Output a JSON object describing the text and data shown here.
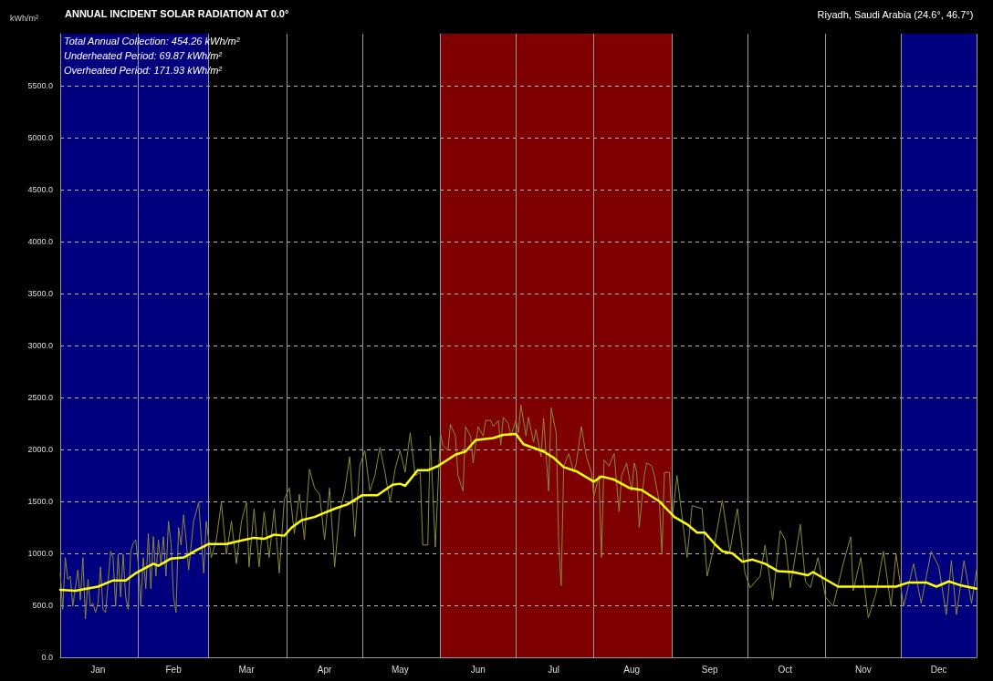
{
  "chart_data": {
    "type": "line",
    "title": "ANNUAL INCIDENT SOLAR RADIATION AT 0.0°",
    "subtitle": "Riyadh, Saudi Arabia (24.6°, 46.7°)",
    "ylabel": "kWh/m²",
    "annotations": [
      "Total Annual Collection:  454.26 kWh/m²",
      "Underheated Period:  69.87 kWh/m²",
      "Overheated Period:  171.93 kWh/m²"
    ],
    "xlim": [
      "--01-01",
      "--12-31"
    ],
    "xticks": [
      {
        "value": "--01-01",
        "label": null
      },
      {
        "value": "--01-16",
        "label": "Jan"
      },
      {
        "value": "--02-01",
        "label": null
      },
      {
        "value": "--02-15",
        "label": "Feb"
      },
      {
        "value": "--03-01",
        "label": null
      },
      {
        "value": "--03-16",
        "label": "Mar"
      },
      {
        "value": "--04-01",
        "label": null
      },
      {
        "value": "--04-16",
        "label": "Apr"
      },
      {
        "value": "--05-01",
        "label": null
      },
      {
        "value": "--05-16",
        "label": "May"
      },
      {
        "value": "--06-01",
        "label": null
      },
      {
        "value": "--06-16",
        "label": "Jun"
      },
      {
        "value": "--07-01",
        "label": null
      },
      {
        "value": "--07-16",
        "label": "Jul"
      },
      {
        "value": "--08-01",
        "label": null
      },
      {
        "value": "--08-16",
        "label": "Aug"
      },
      {
        "value": "--09-01",
        "label": null
      },
      {
        "value": "--09-16",
        "label": "Sep"
      },
      {
        "value": "--10-01",
        "label": null
      },
      {
        "value": "--10-16",
        "label": "Oct"
      },
      {
        "value": "--11-01",
        "label": null
      },
      {
        "value": "--11-16",
        "label": "Nov"
      },
      {
        "value": "--12-01",
        "label": null
      },
      {
        "value": "--12-16",
        "label": "Dec"
      },
      {
        "value": "--12-31",
        "label": null
      }
    ],
    "ylim": [
      0,
      6000
    ],
    "yticks": [
      {
        "value": 0,
        "label": "0.0"
      },
      {
        "value": 500,
        "label": "500.0"
      },
      {
        "value": 1000,
        "label": "1000.0"
      },
      {
        "value": 1500,
        "label": "1500.0"
      },
      {
        "value": 2000,
        "label": "2000.0"
      },
      {
        "value": 2500,
        "label": "2500.0"
      },
      {
        "value": 3000,
        "label": "3000.0"
      },
      {
        "value": 3500,
        "label": "3500.0"
      },
      {
        "value": 4000,
        "label": "4000.0"
      },
      {
        "value": 4500,
        "label": "4500.0"
      },
      {
        "value": 5000,
        "label": "5000.0"
      },
      {
        "value": 5500,
        "label": "5500.0"
      }
    ],
    "grid": true,
    "marker": "none",
    "line_style": "solid",
    "bands": [
      {
        "axis": "x",
        "from": "--01-01",
        "to": "--03-01",
        "color": "#00007f"
      },
      {
        "axis": "x",
        "from": "--06-01",
        "to": "--09-01",
        "color": "#7f0000"
      },
      {
        "axis": "x",
        "from": "--12-01",
        "to": "--12-31",
        "color": "#00007f"
      }
    ],
    "series": [
      {
        "color": "#8c8a3a",
        "x": [
          "--01-01",
          "--01-02",
          "--01-03",
          "--01-04",
          "--01-05",
          "--01-06",
          "--01-08",
          "--01-09",
          "--01-10",
          "--01-11",
          "--01-12",
          "--01-13",
          "--01-14",
          "--01-15",
          "--01-16",
          "--01-17",
          "--01-18",
          "--01-19",
          "--01-20",
          "--01-21",
          "--01-22",
          "--01-23",
          "--01-24",
          "--01-25",
          "--01-26",
          "--01-27",
          "--01-28",
          "--01-29",
          "--01-30",
          "--01-31",
          "--02-01",
          "--02-02",
          "--02-03",
          "--02-04",
          "--02-05",
          "--02-06",
          "--02-07",
          "--02-08",
          "--02-09",
          "--02-10",
          "--02-11",
          "--02-12",
          "--02-13",
          "--02-14",
          "--02-15",
          "--02-16",
          "--02-17",
          "--02-18",
          "--02-19",
          "--02-20",
          "--02-21",
          "--02-23",
          "--02-25",
          "--02-27",
          "--02-28",
          "--03-02",
          "--03-04",
          "--03-06",
          "--03-08",
          "--03-10",
          "--03-12",
          "--03-14",
          "--03-16",
          "--03-17",
          "--03-19",
          "--03-21",
          "--03-23",
          "--03-25",
          "--03-27",
          "--03-29",
          "--03-31",
          "--04-02",
          "--04-04",
          "--04-06",
          "--04-08",
          "--04-10",
          "--04-12",
          "--04-14",
          "--04-16",
          "--04-18",
          "--04-20",
          "--04-22",
          "--04-24",
          "--04-26",
          "--04-28",
          "--04-30",
          "--05-02",
          "--05-04",
          "--05-06",
          "--05-08",
          "--05-10",
          "--05-12",
          "--05-14",
          "--05-16",
          "--05-18",
          "--05-20",
          "--05-22",
          "--05-24",
          "--05-25",
          "--05-27",
          "--05-28",
          "--05-30",
          "--06-01",
          "--06-02",
          "--06-04",
          "--06-05",
          "--06-07",
          "--06-08",
          "--06-10",
          "--06-11",
          "--06-13",
          "--06-14",
          "--06-16",
          "--06-18",
          "--06-19",
          "--06-21",
          "--06-22",
          "--06-24",
          "--06-25",
          "--06-26",
          "--06-28",
          "--06-29",
          "--07-01",
          "--07-02",
          "--07-03",
          "--07-05",
          "--07-06",
          "--07-08",
          "--07-09",
          "--07-11",
          "--07-12",
          "--07-14",
          "--07-15",
          "--07-17",
          "--07-18",
          "--07-19",
          "--07-20",
          "--07-22",
          "--07-24",
          "--07-25",
          "--07-27",
          "--07-29",
          "--07-31",
          "--08-01",
          "--08-03",
          "--08-04",
          "--08-05",
          "--08-07",
          "--08-09",
          "--08-11",
          "--08-12",
          "--08-14",
          "--08-16",
          "--08-17",
          "--08-18",
          "--08-19",
          "--08-21",
          "--08-22",
          "--08-24",
          "--08-25",
          "--08-27",
          "--08-28",
          "--08-29",
          "--08-31",
          "--09-01",
          "--09-03",
          "--09-07",
          "--09-09",
          "--09-13",
          "--09-15",
          "--09-18",
          "--09-21",
          "--09-24",
          "--09-27",
          "--09-30",
          "--10-02",
          "--10-06",
          "--10-08",
          "--10-11",
          "--10-14",
          "--10-16",
          "--10-18",
          "--10-22",
          "--10-24",
          "--10-26",
          "--10-29",
          "--11-01",
          "--11-04",
          "--11-08",
          "--11-11",
          "--11-12",
          "--11-15",
          "--11-18",
          "--11-21",
          "--11-24",
          "--11-27",
          "--11-29",
          "--12-02",
          "--12-06",
          "--12-09",
          "--12-13",
          "--12-16",
          "--12-19",
          "--12-21",
          "--12-23",
          "--12-26",
          "--12-29",
          "--12-31"
        ],
        "values": [
          810,
          460,
          960,
          750,
          780,
          490,
          840,
          550,
          960,
          370,
          750,
          490,
          520,
          430,
          520,
          870,
          460,
          430,
          720,
          1020,
          960,
          490,
          990,
          580,
          990,
          580,
          460,
          1020,
          1100,
          1130,
          900,
          490,
          960,
          660,
          1190,
          660,
          1160,
          780,
          1130,
          900,
          1160,
          780,
          1310,
          1100,
          580,
          430,
          1250,
          1080,
          1370,
          1130,
          840,
          1310,
          1490,
          810,
          1310,
          960,
          1130,
          1490,
          990,
          1310,
          900,
          1310,
          1490,
          870,
          1430,
          870,
          1400,
          960,
          1430,
          810,
          1520,
          1630,
          1190,
          1570,
          1130,
          1810,
          1630,
          1570,
          1130,
          1630,
          870,
          1400,
          1600,
          1930,
          1160,
          1840,
          1990,
          1600,
          1750,
          2020,
          1780,
          1490,
          1810,
          1990,
          1780,
          2160,
          1750,
          1780,
          1080,
          1080,
          2130,
          1060,
          2160,
          2040,
          1990,
          2240,
          2130,
          1750,
          1600,
          2220,
          2130,
          1870,
          2220,
          2130,
          2280,
          2280,
          2220,
          2280,
          2040,
          2310,
          2250,
          2130,
          2280,
          2160,
          2430,
          2130,
          2310,
          2070,
          2190,
          1930,
          2300,
          1600,
          2400,
          2160,
          1100,
          690,
          1840,
          1960,
          1780,
          1870,
          2220,
          1930,
          1780,
          1550,
          1750,
          960,
          1900,
          1840,
          1960,
          1400,
          1750,
          1870,
          1600,
          1870,
          1780,
          1250,
          1750,
          1870,
          1840,
          1750,
          1490,
          990,
          1780,
          1780,
          1310,
          1750,
          960,
          1460,
          1430,
          780,
          1100,
          1510,
          1020,
          1430,
          810,
          670,
          780,
          1080,
          550,
          1220,
          1130,
          670,
          1280,
          730,
          670,
          960,
          580,
          490,
          900,
          1160,
          640,
          960,
          380,
          610,
          1020,
          490,
          990,
          490,
          900,
          520,
          1020,
          870,
          410,
          930,
          410,
          930,
          520,
          840
        ]
      },
      {
        "color": "#ffff00",
        "x": [
          "--01-01",
          "--01-07",
          "--01-16",
          "--01-22",
          "--01-27",
          "--01-31",
          "--02-07",
          "--02-09",
          "--02-14",
          "--02-19",
          "--02-24",
          "--03-01",
          "--03-08",
          "--03-15",
          "--03-19",
          "--03-23",
          "--03-27",
          "--03-31",
          "--04-03",
          "--04-07",
          "--04-12",
          "--04-15",
          "--04-20",
          "--04-25",
          "--05-01",
          "--05-07",
          "--05-13",
          "--05-16",
          "--05-18",
          "--05-23",
          "--05-27",
          "--05-31",
          "--06-07",
          "--06-11",
          "--06-15",
          "--06-22",
          "--06-26",
          "--07-01",
          "--07-04",
          "--07-12",
          "--07-16",
          "--07-20",
          "--07-25",
          "--08-01",
          "--08-04",
          "--08-09",
          "--08-15",
          "--08-20",
          "--08-27",
          "--09-02",
          "--09-07",
          "--09-11",
          "--09-14",
          "--09-18",
          "--09-21",
          "--09-25",
          "--09-29",
          "--10-03",
          "--10-08",
          "--10-13",
          "--10-19",
          "--10-25",
          "--10-27",
          "--11-01",
          "--11-06",
          "--11-15",
          "--11-29",
          "--12-04",
          "--12-11",
          "--12-15",
          "--12-20",
          "--12-25",
          "--12-31"
        ],
        "values": [
          650,
          640,
          680,
          740,
          740,
          810,
          900,
          880,
          950,
          960,
          1030,
          1090,
          1090,
          1130,
          1150,
          1140,
          1180,
          1170,
          1250,
          1320,
          1350,
          1380,
          1430,
          1470,
          1560,
          1560,
          1660,
          1670,
          1650,
          1800,
          1800,
          1840,
          1950,
          1980,
          2090,
          2110,
          2140,
          2150,
          2050,
          1980,
          1920,
          1830,
          1790,
          1690,
          1740,
          1710,
          1630,
          1610,
          1500,
          1350,
          1280,
          1200,
          1200,
          1090,
          1020,
          1000,
          920,
          940,
          900,
          830,
          820,
          790,
          820,
          750,
          680,
          680,
          680,
          720,
          720,
          680,
          730,
          690,
          660
        ]
      }
    ]
  }
}
